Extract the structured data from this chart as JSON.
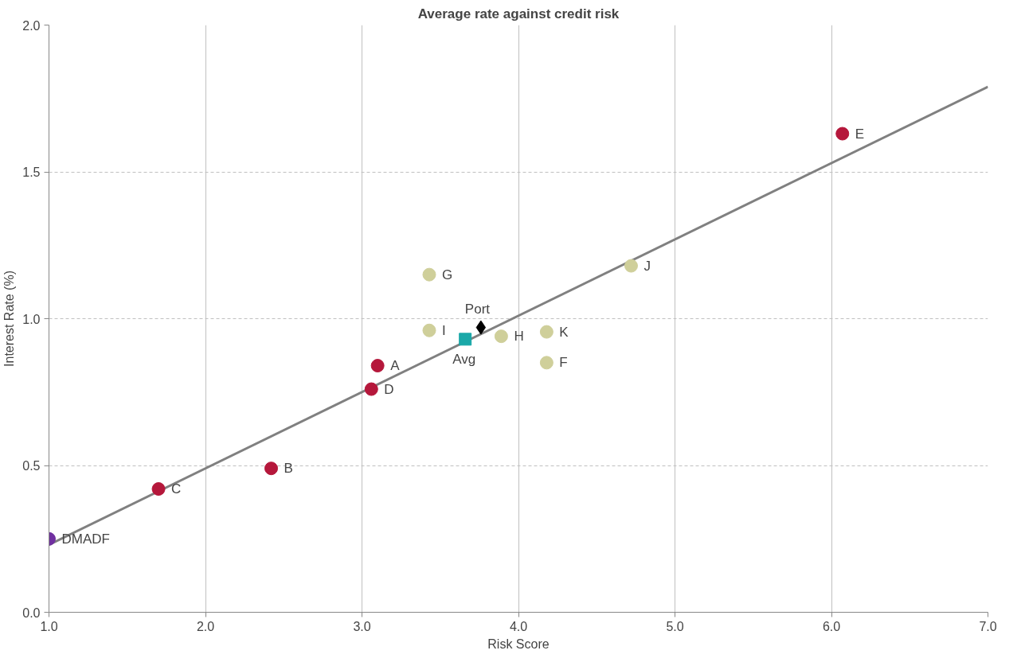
{
  "chart_data": {
    "type": "scatter",
    "title": "Average rate against credit risk",
    "xlabel": "Risk Score",
    "ylabel": "Interest Rate (%)",
    "xlim": [
      1,
      7
    ],
    "ylim": [
      0,
      2
    ],
    "xticks": [
      {
        "value": 1,
        "label": "1.0"
      },
      {
        "value": 2,
        "label": "2.0"
      },
      {
        "value": 3,
        "label": "3.0"
      },
      {
        "value": 4,
        "label": "4.0"
      },
      {
        "value": 5,
        "label": "5.0"
      },
      {
        "value": 6,
        "label": "6.0"
      },
      {
        "value": 7,
        "label": "7.0"
      }
    ],
    "yticks": [
      {
        "value": 0,
        "label": "0.0"
      },
      {
        "value": 0.5,
        "label": "0.5"
      },
      {
        "value": 1,
        "label": "1.0"
      },
      {
        "value": 1.5,
        "label": "1.5"
      },
      {
        "value": 2,
        "label": "2.0"
      }
    ],
    "grid": true,
    "series": [
      {
        "type": "line",
        "color": "#808080",
        "x": [
          1,
          7
        ],
        "values": [
          0.23,
          1.79
        ],
        "marker": "none",
        "line_style": "solid"
      },
      {
        "color": "#b5173b",
        "marker": "circle",
        "x": [
          3.1,
          2.42,
          1.7,
          3.06,
          6.07
        ],
        "values": [
          0.84,
          0.49,
          0.42,
          0.76,
          1.63
        ]
      },
      {
        "color": "#cfcf9a",
        "marker": "circle",
        "x": [
          4.18,
          3.43,
          3.89,
          3.43,
          4.72,
          4.18
        ],
        "values": [
          0.85,
          1.15,
          0.94,
          0.96,
          1.18,
          0.955
        ]
      },
      {
        "color": "#7030a0",
        "marker": "circle",
        "x": [
          1.0
        ],
        "values": [
          0.25
        ]
      },
      {
        "name": "Port",
        "color": "#000000",
        "marker": "diamond",
        "x": [
          3.76
        ],
        "values": [
          0.97
        ]
      },
      {
        "name": "Avg",
        "color": "#1aa8a8",
        "marker": "square",
        "x": [
          3.66
        ],
        "values": [
          0.93
        ]
      }
    ],
    "annotations": [
      {
        "text": "A",
        "x": 3.1,
        "y": 0.84
      },
      {
        "text": "B",
        "x": 2.42,
        "y": 0.49
      },
      {
        "text": "C",
        "x": 1.7,
        "y": 0.42
      },
      {
        "text": "D",
        "x": 3.06,
        "y": 0.76
      },
      {
        "text": "E",
        "x": 6.07,
        "y": 1.63
      },
      {
        "text": "F",
        "x": 4.18,
        "y": 0.85
      },
      {
        "text": "G",
        "x": 3.43,
        "y": 1.15
      },
      {
        "text": "H",
        "x": 3.89,
        "y": 0.94
      },
      {
        "text": "I",
        "x": 3.43,
        "y": 0.96
      },
      {
        "text": "J",
        "x": 4.72,
        "y": 1.18
      },
      {
        "text": "K",
        "x": 4.18,
        "y": 0.955
      },
      {
        "text": "DMADF",
        "x": 1.0,
        "y": 0.25
      }
    ]
  }
}
